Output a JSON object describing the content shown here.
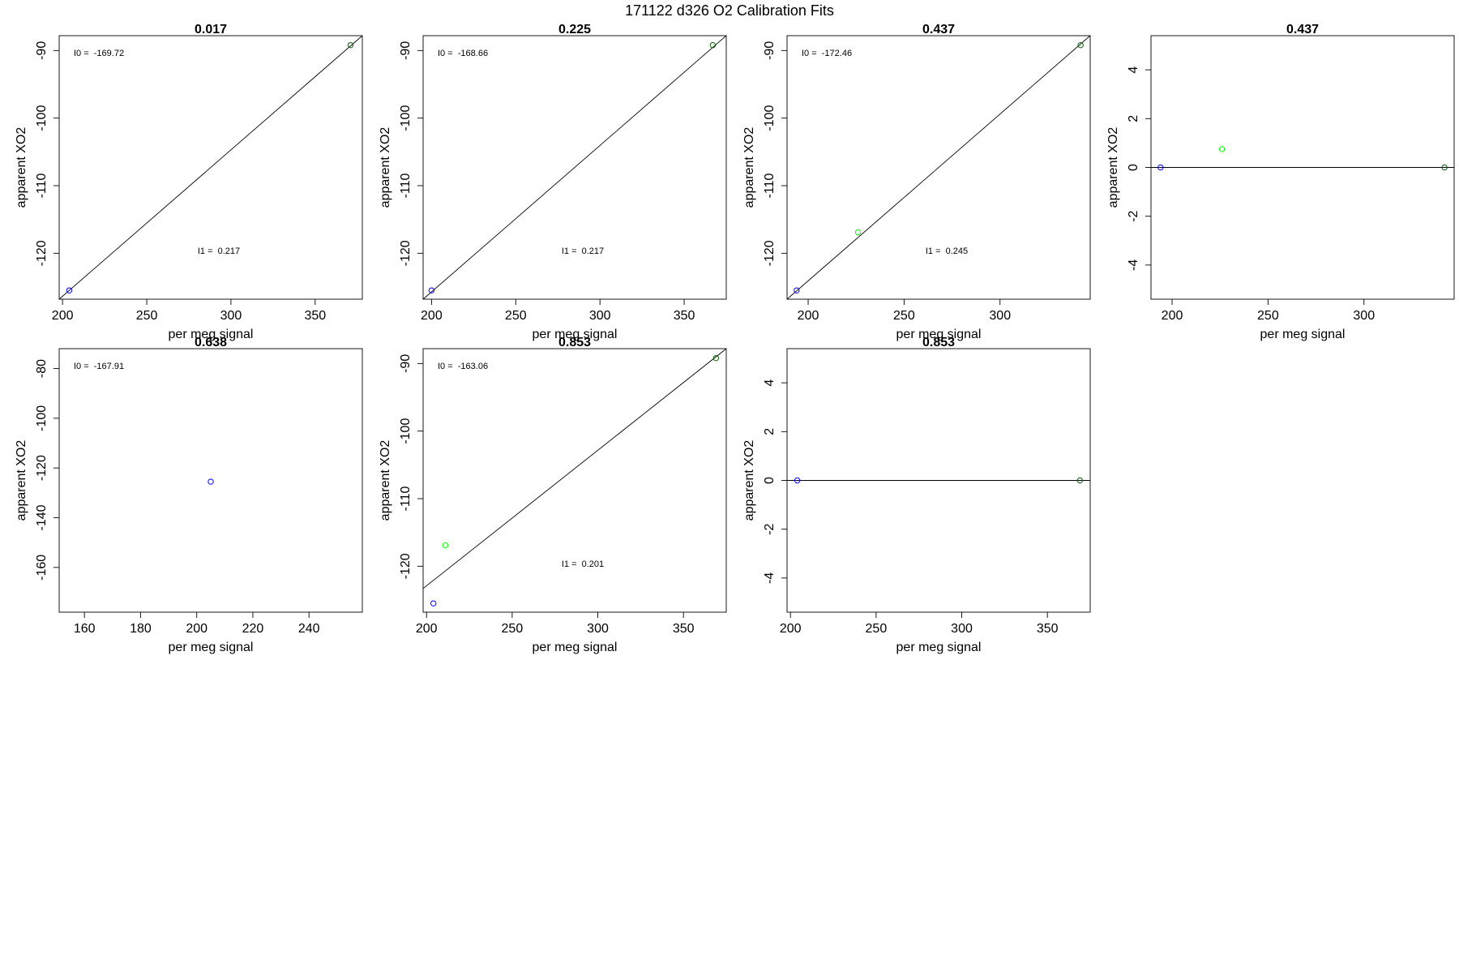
{
  "figure": {
    "title": "171122   d326   O2 Calibration Fits"
  },
  "colors": {
    "blue_points": "#0000ff",
    "green_points": "#00ff00",
    "darkgreen_points": "#006400",
    "axis": "#000000"
  },
  "chart_data": [
    {
      "type": "scatter",
      "title": "0.017",
      "xlabel": "per meg signal",
      "ylabel": "apparent XO2",
      "xlim": [
        198,
        378
      ],
      "ylim": [
        -126.8,
        -87.8
      ],
      "xticks": [
        200,
        250,
        300,
        350
      ],
      "yticks": [
        -120,
        -110,
        -100,
        -90
      ],
      "annotations": [
        "I0 =  -169.72",
        "I1 =  0.217"
      ],
      "points": [
        {
          "x": 204,
          "y": -125.5,
          "color": "blue"
        },
        {
          "x": 371,
          "y": -89.2,
          "color": "darkgreen"
        }
      ],
      "fit_line": {
        "kind": "segment",
        "x": [
          198,
          378
        ],
        "y": [
          -126.8,
          -87.8
        ]
      }
    },
    {
      "type": "scatter",
      "title": "0.225",
      "xlabel": "per meg signal",
      "ylabel": "apparent XO2",
      "xlim": [
        195,
        375
      ],
      "ylim": [
        -126.8,
        -87.8
      ],
      "xticks": [
        200,
        250,
        300,
        350
      ],
      "yticks": [
        -120,
        -110,
        -100,
        -90
      ],
      "annotations": [
        "I0 =  -168.66",
        "I1 =  0.217"
      ],
      "points": [
        {
          "x": 200,
          "y": -125.5,
          "color": "blue"
        },
        {
          "x": 367,
          "y": -89.2,
          "color": "darkgreen"
        }
      ],
      "fit_line": {
        "kind": "segment",
        "x": [
          195,
          375
        ],
        "y": [
          -126.8,
          -87.8
        ]
      }
    },
    {
      "type": "scatter",
      "title": "0.437",
      "xlabel": "per meg signal",
      "ylabel": "apparent XO2",
      "xlim": [
        189,
        347
      ],
      "ylim": [
        -126.8,
        -87.8
      ],
      "xticks": [
        200,
        250,
        300
      ],
      "yticks": [
        -120,
        -110,
        -100,
        -90
      ],
      "annotations": [
        "I0 =  -172.46",
        "I1 =  0.245"
      ],
      "points": [
        {
          "x": 194,
          "y": -125.5,
          "color": "blue"
        },
        {
          "x": 226,
          "y": -116.9,
          "color": "green"
        },
        {
          "x": 342,
          "y": -89.2,
          "color": "darkgreen"
        }
      ],
      "fit_line": {
        "kind": "segment",
        "x": [
          189,
          347
        ],
        "y": [
          -126.8,
          -87.8
        ]
      }
    },
    {
      "type": "scatter",
      "title": "0.437",
      "xlabel": "per meg signal",
      "ylabel": "apparent XO2",
      "xlim": [
        189,
        347
      ],
      "ylim": [
        -5.4,
        5.4
      ],
      "xticks": [
        200,
        250,
        300
      ],
      "yticks": [
        -4,
        -2,
        0,
        2,
        4
      ],
      "annotations": [],
      "points": [
        {
          "x": 194,
          "y": 0,
          "color": "blue"
        },
        {
          "x": 226,
          "y": 0.75,
          "color": "green"
        },
        {
          "x": 342,
          "y": 0,
          "color": "darkgreen"
        }
      ],
      "fit_line": {
        "kind": "horizontal",
        "y": 0
      }
    },
    {
      "type": "scatter",
      "title": "0.638",
      "xlabel": "per meg signal",
      "ylabel": "apparent XO2",
      "xlim": [
        151,
        259
      ],
      "ylim": [
        -178,
        -72
      ],
      "xticks": [
        160,
        180,
        200,
        220,
        240
      ],
      "yticks": [
        -160,
        -140,
        -120,
        -100,
        -80
      ],
      "annotations": [
        "I0 =  -167.91"
      ],
      "points": [
        {
          "x": 205,
          "y": -125.5,
          "color": "blue"
        }
      ]
    },
    {
      "type": "scatter",
      "title": "0.853",
      "xlabel": "per meg signal",
      "ylabel": "apparent XO2",
      "xlim": [
        198,
        375
      ],
      "ylim": [
        -126.8,
        -87.8
      ],
      "xticks": [
        200,
        250,
        300,
        350
      ],
      "yticks": [
        -120,
        -110,
        -100,
        -90
      ],
      "annotations": [
        "I0 =  -163.06",
        "I1 =  0.201"
      ],
      "points": [
        {
          "x": 204,
          "y": -125.5,
          "color": "blue"
        },
        {
          "x": 211,
          "y": -116.9,
          "color": "green"
        },
        {
          "x": 369,
          "y": -89.2,
          "color": "darkgreen"
        }
      ],
      "fit_line": {
        "kind": "segment",
        "x": [
          198,
          375
        ],
        "y": [
          -123.3,
          -87.8
        ]
      }
    },
    {
      "type": "scatter",
      "title": "0.853",
      "xlabel": "per meg signal",
      "ylabel": "apparent XO2",
      "xlim": [
        198,
        375
      ],
      "ylim": [
        -5.4,
        5.4
      ],
      "xticks": [
        200,
        250,
        300,
        350
      ],
      "yticks": [
        -4,
        -2,
        0,
        2,
        4
      ],
      "annotations": [],
      "points": [
        {
          "x": 204,
          "y": 0,
          "color": "blue"
        },
        {
          "x": 369,
          "y": 0,
          "color": "darkgreen"
        }
      ],
      "fit_line": {
        "kind": "horizontal",
        "y": 0
      }
    }
  ]
}
